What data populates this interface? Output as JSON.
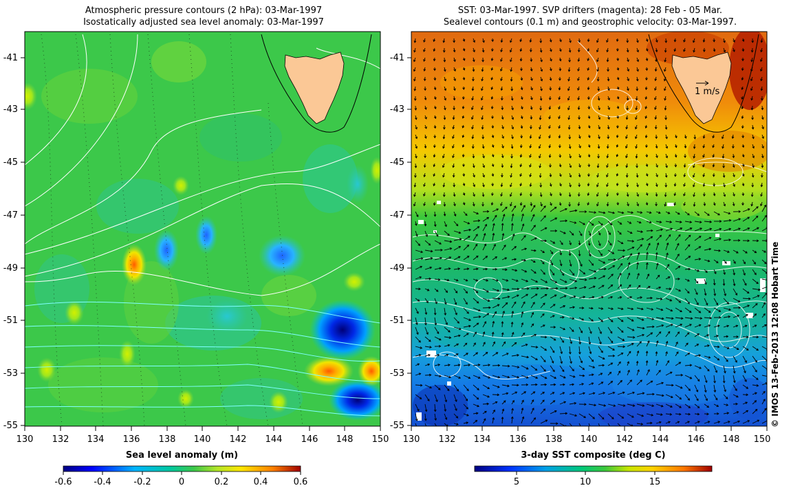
{
  "left_panel": {
    "title_line1": "Atmospheric pressure contours (2 hPa): 03-Mar-1997",
    "title_line2": "Isostatically adjusted sea level anomaly: 03-Mar-1997",
    "y_ticks": [
      "-41",
      "-43",
      "-45",
      "-47",
      "-49",
      "-51",
      "-53",
      "-55"
    ],
    "x_ticks": [
      "130",
      "132",
      "134",
      "136",
      "138",
      "140",
      "142",
      "144",
      "146",
      "148",
      "150"
    ],
    "colorbar_label": "Sea level anomaly (m)",
    "colorbar_ticks": [
      "-0.6",
      "-0.4",
      "-0.2",
      "0",
      "0.2",
      "0.4",
      "0.6"
    ]
  },
  "right_panel": {
    "title_line1": "SST: 03-Mar-1997. SVP drifters (magenta): 28 Feb - 05 Mar.",
    "title_line2": "Sealevel contours (0.1 m) and geostrophic velocity: 03-Mar-1997.",
    "y_ticks": [
      "-41",
      "-43",
      "-45",
      "-47",
      "-49",
      "-51",
      "-53",
      "-55"
    ],
    "x_ticks": [
      "130",
      "132",
      "134",
      "136",
      "138",
      "140",
      "142",
      "144",
      "146",
      "148",
      "150"
    ],
    "scale_arrow_label": "1 m/s",
    "colorbar_label": "3-day SST composite (deg C)",
    "colorbar_ticks": [
      "5",
      "10",
      "15"
    ]
  },
  "credit": "© IMOS 13-Feb-2013 12:08 Hobart Time",
  "colors": {
    "land": "#fbc896",
    "sla_background": "#3cc84a",
    "contour_white": "#ffffff",
    "contour_cyan": "#7fffff"
  },
  "chart_data": [
    {
      "type": "heatmap",
      "title": "Atmospheric pressure contours (2 hPa): 03-Mar-1997 / Isostatically adjusted sea level anomaly: 03-Mar-1997",
      "xlim": [
        130,
        150
      ],
      "ylim": [
        -55,
        -40
      ],
      "colorbar": {
        "label": "Sea level anomaly (m)",
        "range": [
          -0.6,
          0.6
        ]
      },
      "features": [
        {
          "name": "low",
          "lon": 147.9,
          "lat": -51.2,
          "value": -0.55
        },
        {
          "name": "low",
          "lon": 148.0,
          "lat": -54.2,
          "value": -0.4
        },
        {
          "name": "low",
          "lon": 138.2,
          "lat": -48.5,
          "value": -0.25
        },
        {
          "name": "low",
          "lon": 140.3,
          "lat": -48.0,
          "value": -0.2
        },
        {
          "name": "low",
          "lon": 144.8,
          "lat": -48.6,
          "value": -0.2
        },
        {
          "name": "high",
          "lon": 136.2,
          "lat": -49.0,
          "value": 0.35
        },
        {
          "name": "high",
          "lon": 147.2,
          "lat": -52.9,
          "value": 0.4
        },
        {
          "name": "high",
          "lon": 149.8,
          "lat": -52.5,
          "value": 0.3
        },
        {
          "name": "high",
          "lon": 136.0,
          "lat": -52.0,
          "value": 0.2
        },
        {
          "name": "high",
          "lon": 130.5,
          "lat": -53.0,
          "value": 0.2
        },
        {
          "name": "high",
          "lon": 149.8,
          "lat": -45.2,
          "value": 0.2
        }
      ]
    },
    {
      "type": "heatmap",
      "title": "SST: 03-Mar-1997. SVP drifters (magenta): 28 Feb - 05 Mar. / Sealevel contours (0.1 m) and geostrophic velocity: 03-Mar-1997.",
      "xlim": [
        130,
        150
      ],
      "ylim": [
        -55,
        -40
      ],
      "colorbar": {
        "label": "3-day SST composite (deg C)",
        "range": [
          2,
          19
        ]
      },
      "latitude_bands": [
        {
          "lat": -40,
          "sst": 17
        },
        {
          "lat": -43,
          "sst": 15.5
        },
        {
          "lat": -45,
          "sst": 14
        },
        {
          "lat": -46.5,
          "sst": 12.5
        },
        {
          "lat": -48,
          "sst": 10.5
        },
        {
          "lat": -51,
          "sst": 9
        },
        {
          "lat": -53,
          "sst": 7
        },
        {
          "lat": -55,
          "sst": 5
        }
      ]
    }
  ]
}
